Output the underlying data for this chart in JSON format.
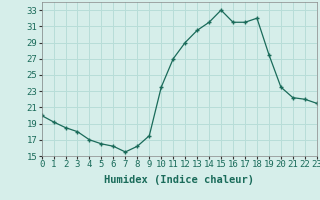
{
  "xlabel": "Humidex (Indice chaleur)",
  "x": [
    0,
    1,
    2,
    3,
    4,
    5,
    6,
    7,
    8,
    9,
    10,
    11,
    12,
    13,
    14,
    15,
    16,
    17,
    18,
    19,
    20,
    21,
    22,
    23
  ],
  "y": [
    20,
    19.2,
    18.5,
    18,
    17,
    16.5,
    16.2,
    15.5,
    16.2,
    17.5,
    23.5,
    27,
    29,
    30.5,
    31.5,
    33,
    31.5,
    31.5,
    32,
    27.5,
    23.5,
    22.2,
    22,
    21.5
  ],
  "line_color": "#1a6b5a",
  "marker": "+",
  "bg_color": "#d6eeea",
  "grid_color": "#b8ddd8",
  "ylim": [
    15,
    34
  ],
  "yticks": [
    15,
    17,
    19,
    21,
    23,
    25,
    27,
    29,
    31,
    33
  ],
  "xlim": [
    0,
    23
  ],
  "xticks": [
    0,
    1,
    2,
    3,
    4,
    5,
    6,
    7,
    8,
    9,
    10,
    11,
    12,
    13,
    14,
    15,
    16,
    17,
    18,
    19,
    20,
    21,
    22,
    23
  ],
  "tick_fontsize": 6.5,
  "label_fontsize": 7.5
}
